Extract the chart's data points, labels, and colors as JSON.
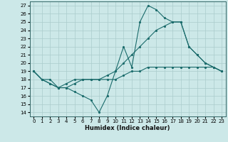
{
  "xlabel": "Humidex (Indice chaleur)",
  "xlim": [
    -0.5,
    23.5
  ],
  "ylim": [
    13.5,
    27.5
  ],
  "yticks": [
    14,
    15,
    16,
    17,
    18,
    19,
    20,
    21,
    22,
    23,
    24,
    25,
    26,
    27
  ],
  "xticks": [
    0,
    1,
    2,
    3,
    4,
    5,
    6,
    7,
    8,
    9,
    10,
    11,
    12,
    13,
    14,
    15,
    16,
    17,
    18,
    19,
    20,
    21,
    22,
    23
  ],
  "bg_color": "#cce8e8",
  "grid_color": "#aacccc",
  "line_color": "#1a6b6b",
  "lines": [
    {
      "x": [
        0,
        1,
        2,
        3,
        4,
        5,
        6,
        7,
        8,
        9,
        10,
        11,
        12,
        13,
        14,
        15,
        16,
        17,
        18,
        19,
        20,
        21,
        22,
        23
      ],
      "y": [
        19,
        18,
        17.5,
        17,
        17,
        16.5,
        16,
        15.5,
        14,
        16,
        19,
        22,
        19.5,
        25,
        27,
        26.5,
        25.5,
        25,
        25,
        22,
        21,
        20,
        19.5,
        19
      ]
    },
    {
      "x": [
        0,
        1,
        2,
        3,
        4,
        5,
        6,
        7,
        8,
        9,
        10,
        11,
        12,
        13,
        14,
        15,
        16,
        17,
        18,
        19,
        20,
        21,
        22,
        23
      ],
      "y": [
        19,
        18,
        17.5,
        17,
        17.5,
        18,
        18,
        18,
        18,
        18,
        18,
        18.5,
        19,
        19,
        19.5,
        19.5,
        19.5,
        19.5,
        19.5,
        19.5,
        19.5,
        19.5,
        19.5,
        19
      ]
    },
    {
      "x": [
        0,
        1,
        2,
        3,
        4,
        5,
        6,
        7,
        8,
        9,
        10,
        11,
        12,
        13,
        14,
        15,
        16,
        17,
        18,
        19,
        20,
        21,
        22,
        23
      ],
      "y": [
        19,
        18,
        18,
        17,
        17,
        17.5,
        18,
        18,
        18,
        18.5,
        19,
        20,
        21,
        22,
        23,
        24,
        24.5,
        25,
        25,
        22,
        21,
        20,
        19.5,
        19
      ]
    }
  ]
}
